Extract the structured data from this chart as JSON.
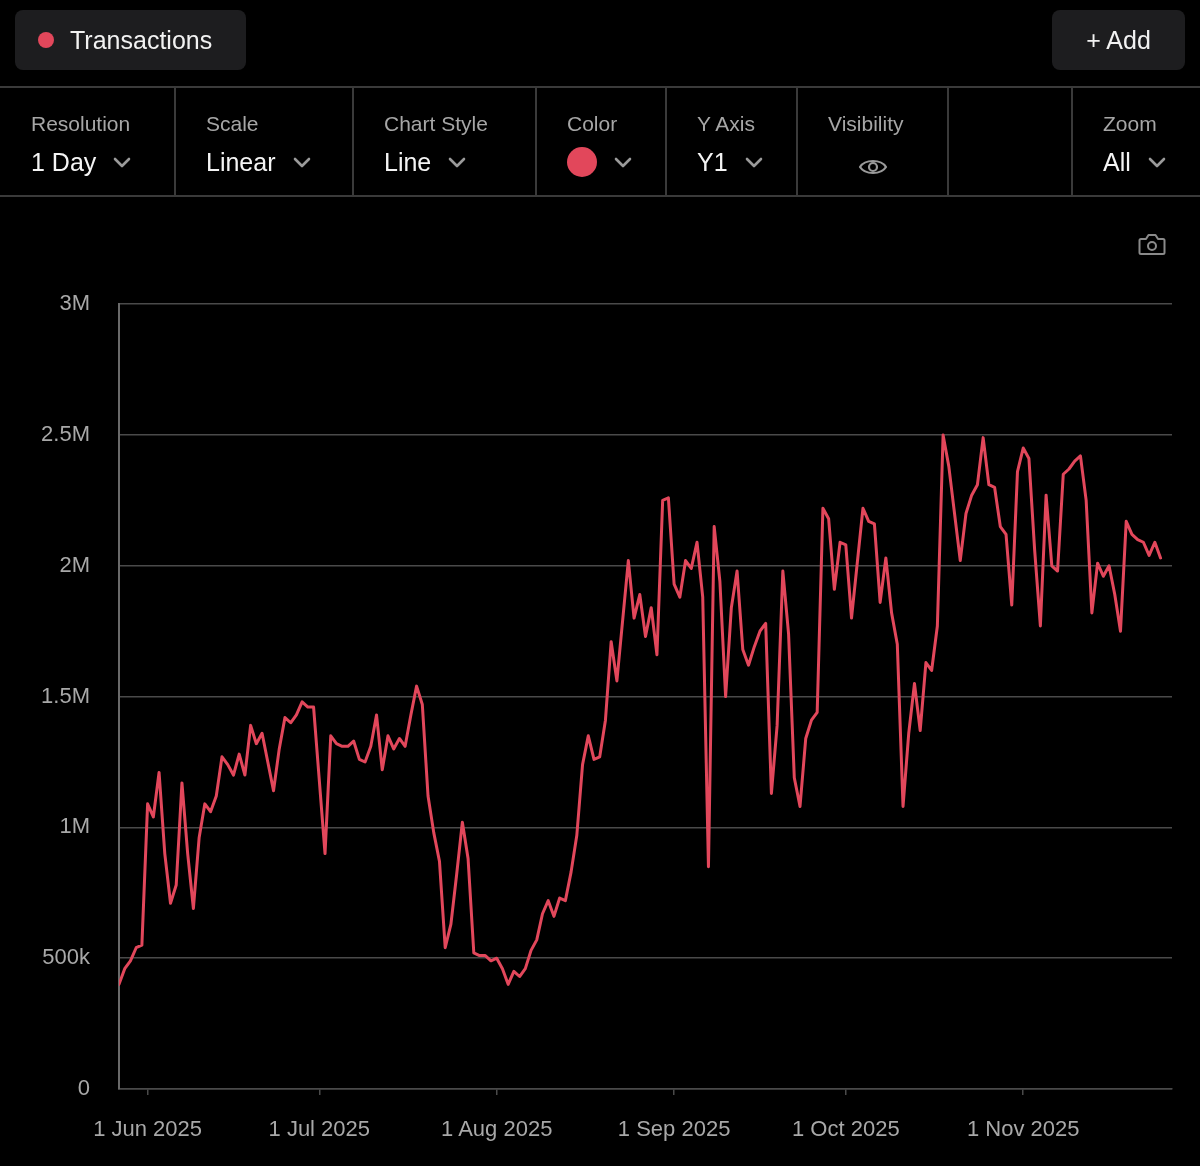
{
  "chart_data": {
    "type": "line",
    "legend": "top left",
    "grid": "y",
    "annotations": [
      "+ Add",
      "Resolution",
      "1 Day",
      "Scale",
      "Linear",
      "Chart Style",
      "Line",
      "Color",
      "Y Axis",
      "Y1",
      "Visibility",
      "Zoom",
      "All"
    ],
    "xlim": [
      "2025-05-27",
      "2025-11-27"
    ],
    "xticks": [
      {
        "value": "2025-06-01",
        "label": "1 Jun 2025"
      },
      {
        "value": "2025-07-01",
        "label": "1 Jul 2025"
      },
      {
        "value": "2025-08-01",
        "label": "1 Aug 2025"
      },
      {
        "value": "2025-09-01",
        "label": "1 Sep 2025"
      },
      {
        "value": "2025-10-01",
        "label": "1 Oct 2025"
      },
      {
        "value": "2025-11-01",
        "label": "1 Nov 2025"
      }
    ],
    "ylim": [
      0,
      3000000
    ],
    "yticks": [
      0,
      {
        "value": 500000,
        "label": "500k"
      },
      {
        "value": 1000000,
        "label": "1M"
      },
      {
        "value": 1500000,
        "label": "1.5M"
      },
      {
        "value": 2000000,
        "label": "2M"
      },
      {
        "value": 2500000,
        "label": "2.5M"
      },
      {
        "value": 3000000,
        "label": "3M"
      }
    ],
    "x": [
      "2025-05-27",
      "2025-05-28",
      "2025-05-29",
      "2025-05-30",
      "2025-05-31",
      "2025-06-01",
      "2025-06-02",
      "2025-06-03",
      "2025-06-04",
      "2025-06-05",
      "2025-06-06",
      "2025-06-07",
      "2025-06-08",
      "2025-06-09",
      "2025-06-10",
      "2025-06-11",
      "2025-06-12",
      "2025-06-13",
      "2025-06-14",
      "2025-06-15",
      "2025-06-16",
      "2025-06-17",
      "2025-06-18",
      "2025-06-19",
      "2025-06-20",
      "2025-06-21",
      "2025-06-22",
      "2025-06-23",
      "2025-06-24",
      "2025-06-25",
      "2025-06-26",
      "2025-06-27",
      "2025-06-28",
      "2025-06-29",
      "2025-06-30",
      "2025-07-02",
      "2025-07-03",
      "2025-07-04",
      "2025-07-05",
      "2025-07-06",
      "2025-07-07",
      "2025-07-08",
      "2025-07-09",
      "2025-07-10",
      "2025-07-11",
      "2025-07-12",
      "2025-07-13",
      "2025-07-14",
      "2025-07-15",
      "2025-07-16",
      "2025-07-17",
      "2025-07-18",
      "2025-07-19",
      "2025-07-20",
      "2025-07-21",
      "2025-07-22",
      "2025-07-23",
      "2025-07-24",
      "2025-07-25",
      "2025-07-26",
      "2025-07-27",
      "2025-07-28",
      "2025-07-29",
      "2025-07-30",
      "2025-07-31",
      "2025-08-01",
      "2025-08-02",
      "2025-08-03",
      "2025-08-04",
      "2025-08-05",
      "2025-08-06",
      "2025-08-07",
      "2025-08-08",
      "2025-08-09",
      "2025-08-10",
      "2025-08-11",
      "2025-08-12",
      "2025-08-13",
      "2025-08-14",
      "2025-08-15",
      "2025-08-16",
      "2025-08-17",
      "2025-08-18",
      "2025-08-19",
      "2025-08-20",
      "2025-08-21",
      "2025-08-22",
      "2025-08-24",
      "2025-08-25",
      "2025-08-26",
      "2025-08-27",
      "2025-08-28",
      "2025-08-29",
      "2025-08-30",
      "2025-08-31",
      "2025-09-01",
      "2025-09-02",
      "2025-09-03",
      "2025-09-04",
      "2025-09-05",
      "2025-09-06",
      "2025-09-07",
      "2025-09-08",
      "2025-09-09",
      "2025-09-10",
      "2025-09-11",
      "2025-09-12",
      "2025-09-13",
      "2025-09-14",
      "2025-09-15",
      "2025-09-16",
      "2025-09-17",
      "2025-09-18",
      "2025-09-19",
      "2025-09-20",
      "2025-09-21",
      "2025-09-22",
      "2025-09-23",
      "2025-09-24",
      "2025-09-25",
      "2025-09-26",
      "2025-09-27",
      "2025-09-28",
      "2025-09-29",
      "2025-09-30",
      "2025-10-01",
      "2025-10-02",
      "2025-10-04",
      "2025-10-05",
      "2025-10-06",
      "2025-10-07",
      "2025-10-08",
      "2025-10-09",
      "2025-10-10",
      "2025-10-11",
      "2025-10-12",
      "2025-10-13",
      "2025-10-14",
      "2025-10-15",
      "2025-10-16",
      "2025-10-17",
      "2025-10-18",
      "2025-10-19",
      "2025-10-20",
      "2025-10-21",
      "2025-10-22",
      "2025-10-23",
      "2025-10-24",
      "2025-10-25",
      "2025-10-26",
      "2025-10-27",
      "2025-10-28",
      "2025-10-29",
      "2025-10-30",
      "2025-10-31",
      "2025-11-01",
      "2025-11-02",
      "2025-11-03",
      "2025-11-04",
      "2025-11-05",
      "2025-11-06",
      "2025-11-07",
      "2025-11-08",
      "2025-11-09",
      "2025-11-10",
      "2025-11-11",
      "2025-11-12",
      "2025-11-13",
      "2025-11-14",
      "2025-11-15",
      "2025-11-16",
      "2025-11-17",
      "2025-11-18",
      "2025-11-19",
      "2025-11-20",
      "2025-11-21",
      "2025-11-22",
      "2025-11-23",
      "2025-11-24",
      "2025-11-25"
    ],
    "series": [
      {
        "name": "Transactions",
        "color": "#e2475b",
        "values": [
          400000,
          460000,
          490000,
          540000,
          550000,
          1090000,
          1040000,
          1210000,
          900000,
          710000,
          780000,
          1170000,
          900000,
          690000,
          960000,
          1090000,
          1060000,
          1120000,
          1270000,
          1240000,
          1200000,
          1280000,
          1200000,
          1390000,
          1320000,
          1360000,
          1250000,
          1140000,
          1300000,
          1420000,
          1400000,
          1430000,
          1480000,
          1460000,
          1460000,
          900000,
          1350000,
          1320000,
          1310000,
          1310000,
          1330000,
          1260000,
          1250000,
          1310000,
          1430000,
          1220000,
          1350000,
          1300000,
          1340000,
          1310000,
          1430000,
          1540000,
          1470000,
          1120000,
          980000,
          870000,
          540000,
          630000,
          820000,
          1020000,
          880000,
          520000,
          510000,
          510000,
          490000,
          500000,
          460000,
          400000,
          450000,
          430000,
          460000,
          530000,
          570000,
          670000,
          720000,
          660000,
          730000,
          720000,
          830000,
          970000,
          1240000,
          1350000,
          1260000,
          1270000,
          1410000,
          1710000,
          1560000,
          2020000,
          1800000,
          1890000,
          1730000,
          1840000,
          1660000,
          2250000,
          2260000,
          1930000,
          1880000,
          2020000,
          1990000,
          2090000,
          1880000,
          850000,
          2150000,
          1940000,
          1500000,
          1840000,
          1980000,
          1680000,
          1620000,
          1690000,
          1750000,
          1780000,
          1130000,
          1390000,
          1980000,
          1740000,
          1190000,
          1080000,
          1340000,
          1410000,
          1440000,
          2220000,
          2180000,
          1910000,
          2090000,
          2080000,
          1800000,
          2220000,
          2170000,
          2160000,
          1860000,
          2030000,
          1820000,
          1700000,
          1080000,
          1360000,
          1550000,
          1370000,
          1630000,
          1600000,
          1770000,
          2500000,
          2380000,
          2200000,
          2020000,
          2200000,
          2270000,
          2310000,
          2490000,
          2310000,
          2300000,
          2150000,
          2120000,
          1850000,
          2360000,
          2450000,
          2410000,
          2060000,
          1770000,
          2270000,
          2000000,
          1980000,
          2350000,
          2370000,
          2400000,
          2420000,
          2250000,
          1820000,
          2010000,
          1960000,
          2000000,
          1890000,
          1750000,
          2170000,
          2120000,
          2100000,
          2090000,
          2040000,
          2090000,
          2030000
        ]
      }
    ]
  }
}
